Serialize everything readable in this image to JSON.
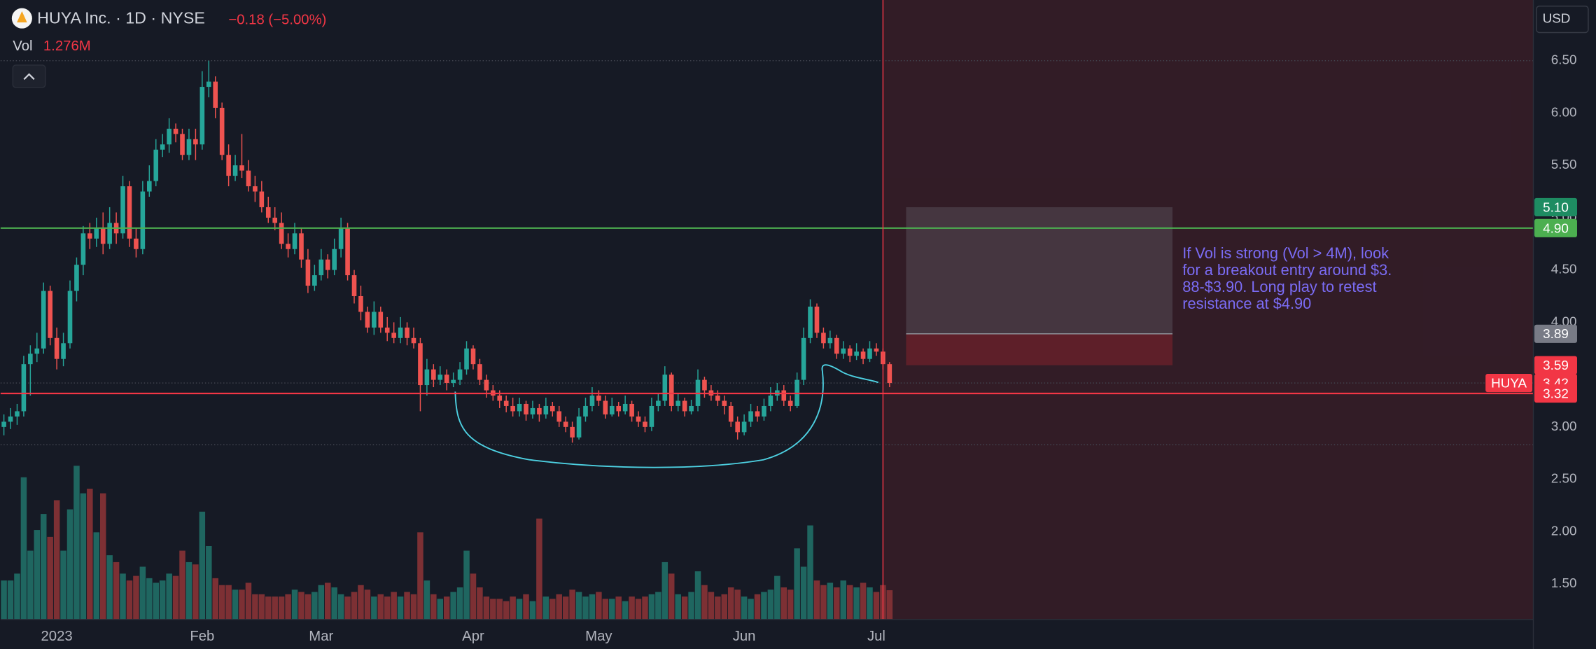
{
  "chart_data": {
    "type": "candlestick",
    "title": "HUYA Inc. · 1D · NYSE",
    "change": "−0.18 (−5.00%)",
    "volume_name": "Vol",
    "volume_label": "1.276M",
    "currency": "USD",
    "open": [
      3.0,
      3.05,
      3.1,
      3.15,
      3.6,
      3.7,
      3.75,
      4.3,
      3.85,
      3.65,
      3.8,
      4.3,
      4.55,
      4.85,
      4.8,
      4.9,
      4.75,
      4.95,
      4.85,
      5.3,
      4.8,
      4.7,
      5.25,
      5.35,
      5.65,
      5.7,
      5.85,
      5.8,
      5.6,
      5.75,
      5.7,
      6.25,
      6.3,
      6.05,
      5.6,
      5.4,
      5.5,
      5.45,
      5.3,
      5.25,
      5.1,
      5.0,
      4.95,
      4.75,
      4.7,
      4.85,
      4.6,
      4.35,
      4.45,
      4.6,
      4.5,
      4.7,
      4.9,
      4.45,
      4.25,
      4.1,
      3.95,
      4.1,
      3.95,
      3.9,
      3.85,
      3.95,
      3.85,
      3.8,
      3.4,
      3.55,
      3.45,
      3.5,
      3.42,
      3.45,
      3.55,
      3.75,
      3.6,
      3.45,
      3.35,
      3.3,
      3.25,
      3.2,
      3.15,
      3.22,
      3.12,
      3.18,
      3.12,
      3.2,
      3.15,
      3.05,
      3.0,
      2.9,
      3.1,
      3.2,
      3.3,
      3.25,
      3.12,
      3.2,
      3.15,
      3.22,
      3.1,
      3.05,
      3.0,
      3.2,
      3.25,
      3.5,
      3.2,
      3.25,
      3.15,
      3.2,
      3.45,
      3.35,
      3.3,
      3.25,
      3.2,
      3.05,
      2.95,
      3.05,
      3.15,
      3.1,
      3.2,
      3.3,
      3.35,
      3.25,
      3.2,
      3.45,
      3.85,
      4.15,
      3.9,
      3.8,
      3.85,
      3.7,
      3.75,
      3.68,
      3.72,
      3.65,
      3.75,
      3.72,
      3.6
    ],
    "high": [
      3.12,
      3.18,
      3.22,
      3.68,
      3.78,
      3.9,
      4.38,
      4.35,
      3.95,
      3.9,
      4.4,
      4.62,
      4.92,
      4.95,
      5.0,
      5.05,
      5.1,
      5.05,
      5.4,
      5.35,
      4.9,
      5.35,
      5.5,
      5.75,
      5.8,
      5.95,
      5.9,
      5.85,
      5.85,
      5.85,
      6.4,
      6.5,
      6.35,
      6.1,
      5.7,
      5.6,
      5.8,
      5.55,
      5.4,
      5.35,
      5.2,
      5.1,
      5.05,
      4.85,
      4.95,
      4.9,
      4.7,
      4.55,
      4.7,
      4.65,
      4.8,
      5.0,
      4.95,
      4.5,
      4.35,
      4.15,
      4.2,
      4.15,
      4.05,
      4.0,
      4.05,
      4.0,
      3.95,
      3.85,
      3.65,
      3.6,
      3.58,
      3.55,
      3.52,
      3.62,
      3.82,
      3.78,
      3.65,
      3.5,
      3.4,
      3.35,
      3.3,
      3.28,
      3.28,
      3.25,
      3.25,
      3.22,
      3.28,
      3.24,
      3.2,
      3.1,
      3.05,
      3.18,
      3.28,
      3.38,
      3.35,
      3.3,
      3.28,
      3.24,
      3.3,
      3.25,
      3.15,
      3.1,
      3.28,
      3.32,
      3.58,
      3.52,
      3.32,
      3.28,
      3.26,
      3.55,
      3.48,
      3.4,
      3.35,
      3.3,
      3.24,
      3.1,
      3.12,
      3.22,
      3.2,
      3.27,
      3.38,
      3.42,
      3.4,
      3.3,
      3.52,
      3.95,
      4.22,
      4.18,
      3.95,
      3.92,
      3.88,
      3.82,
      3.78,
      3.8,
      3.75,
      3.82,
      3.8,
      3.75,
      3.62
    ],
    "low": [
      2.92,
      2.98,
      3.02,
      3.1,
      3.3,
      3.62,
      3.7,
      3.78,
      3.55,
      3.58,
      3.75,
      4.2,
      4.45,
      4.7,
      4.72,
      4.65,
      4.7,
      4.75,
      4.8,
      4.72,
      4.62,
      4.65,
      5.2,
      5.3,
      5.58,
      5.62,
      5.72,
      5.55,
      5.55,
      5.55,
      5.65,
      6.15,
      5.95,
      5.55,
      5.3,
      5.35,
      5.38,
      5.25,
      5.15,
      5.05,
      4.95,
      4.88,
      4.7,
      4.62,
      4.65,
      4.52,
      4.28,
      4.3,
      4.4,
      4.42,
      4.45,
      4.62,
      4.4,
      4.18,
      4.02,
      3.9,
      3.88,
      3.9,
      3.82,
      3.8,
      3.8,
      3.78,
      3.75,
      3.15,
      3.3,
      3.38,
      3.4,
      3.35,
      3.38,
      3.4,
      3.5,
      3.55,
      3.4,
      3.28,
      3.25,
      3.18,
      3.14,
      3.1,
      3.1,
      3.06,
      3.08,
      3.05,
      3.08,
      3.1,
      3.0,
      2.95,
      2.85,
      2.88,
      3.05,
      3.15,
      3.2,
      3.08,
      3.1,
      3.1,
      3.12,
      3.05,
      3.0,
      2.95,
      2.96,
      3.15,
      3.2,
      3.15,
      3.15,
      3.1,
      3.12,
      3.15,
      3.28,
      3.25,
      3.2,
      3.12,
      3.0,
      2.88,
      2.92,
      3.0,
      3.05,
      3.06,
      3.15,
      3.25,
      3.2,
      3.15,
      3.18,
      3.4,
      3.8,
      3.85,
      3.75,
      3.75,
      3.65,
      3.65,
      3.62,
      3.64,
      3.6,
      3.62,
      3.68,
      3.55,
      3.38
    ],
    "close": [
      3.05,
      3.1,
      3.15,
      3.6,
      3.7,
      3.75,
      4.3,
      3.85,
      3.65,
      3.8,
      4.3,
      4.55,
      4.85,
      4.8,
      4.9,
      4.75,
      4.95,
      4.85,
      5.3,
      4.8,
      4.7,
      5.25,
      5.35,
      5.65,
      5.7,
      5.85,
      5.8,
      5.6,
      5.75,
      5.7,
      6.25,
      6.3,
      6.05,
      5.6,
      5.4,
      5.5,
      5.45,
      5.3,
      5.25,
      5.1,
      5.0,
      4.95,
      4.75,
      4.7,
      4.85,
      4.6,
      4.35,
      4.45,
      4.6,
      4.5,
      4.7,
      4.9,
      4.45,
      4.25,
      4.1,
      3.95,
      4.1,
      3.95,
      3.9,
      3.85,
      3.95,
      3.85,
      3.8,
      3.4,
      3.55,
      3.45,
      3.5,
      3.42,
      3.45,
      3.55,
      3.75,
      3.6,
      3.45,
      3.35,
      3.3,
      3.25,
      3.2,
      3.15,
      3.22,
      3.12,
      3.18,
      3.12,
      3.2,
      3.15,
      3.05,
      3.0,
      2.9,
      3.1,
      3.2,
      3.3,
      3.25,
      3.12,
      3.2,
      3.15,
      3.22,
      3.1,
      3.05,
      3.0,
      3.2,
      3.25,
      3.5,
      3.2,
      3.25,
      3.15,
      3.2,
      3.45,
      3.35,
      3.3,
      3.25,
      3.2,
      3.05,
      2.95,
      3.05,
      3.15,
      3.1,
      3.2,
      3.3,
      3.35,
      3.25,
      3.2,
      3.45,
      3.85,
      4.15,
      3.9,
      3.8,
      3.85,
      3.7,
      3.75,
      3.68,
      3.72,
      3.65,
      3.75,
      3.72,
      3.6,
      3.42
    ],
    "volume": [
      1.7,
      1.7,
      2.0,
      6.2,
      3.0,
      3.9,
      4.6,
      3.6,
      5.2,
      3.0,
      4.8,
      6.7,
      5.5,
      5.7,
      3.8,
      5.5,
      2.8,
      2.5,
      2.0,
      1.7,
      1.9,
      2.3,
      1.8,
      1.6,
      1.7,
      2.0,
      1.9,
      3.0,
      2.5,
      2.4,
      4.7,
      3.2,
      1.8,
      1.5,
      1.5,
      1.3,
      1.3,
      1.6,
      1.1,
      1.1,
      1.0,
      1.0,
      1.0,
      1.1,
      1.3,
      1.2,
      1.1,
      1.2,
      1.5,
      1.6,
      1.4,
      1.1,
      1.0,
      1.2,
      1.5,
      1.3,
      1.0,
      1.1,
      1.0,
      1.2,
      1.0,
      1.2,
      1.1,
      3.8,
      1.7,
      1.1,
      0.9,
      1.0,
      1.2,
      1.4,
      3.0,
      2.0,
      1.4,
      1.0,
      0.9,
      0.9,
      0.8,
      1.0,
      0.9,
      1.1,
      0.8,
      4.4,
      1.0,
      0.9,
      1.1,
      1.0,
      1.3,
      1.2,
      1.0,
      1.1,
      1.2,
      0.9,
      0.9,
      1.0,
      0.8,
      1.0,
      0.9,
      1.0,
      1.1,
      1.2,
      2.5,
      2.0,
      1.1,
      1.0,
      1.2,
      2.1,
      1.5,
      1.2,
      1.0,
      1.1,
      1.4,
      1.3,
      1.0,
      0.9,
      1.1,
      1.2,
      1.3,
      1.9,
      1.4,
      1.3,
      3.1,
      2.3,
      4.1,
      1.7,
      1.5,
      1.6,
      1.4,
      1.7,
      1.5,
      1.4,
      1.6,
      1.4,
      1.2,
      1.5,
      1.276
    ],
    "colors": {
      "up": "#26a69a",
      "down": "#ef5350",
      "vol_up": "#1f6660",
      "vol_down": "#7d3034"
    },
    "xlim": [
      -0.5,
      231.4
    ],
    "ylim": [
      1.16,
      7.08
    ],
    "vlim": [
      0,
      27
    ],
    "xticks": [
      {
        "value": 8,
        "label": "2023"
      },
      {
        "value": 30,
        "label": "Feb"
      },
      {
        "value": 48,
        "label": "Mar"
      },
      {
        "value": 71,
        "label": "Apr"
      },
      {
        "value": 90,
        "label": "May"
      },
      {
        "value": 112,
        "label": "Jun"
      },
      {
        "value": 132,
        "label": "Jul"
      }
    ],
    "yticks": [
      {
        "value": 1.5,
        "label": "1.50"
      },
      {
        "value": 2,
        "label": "2.00"
      },
      {
        "value": 2.5,
        "label": "2.50"
      },
      {
        "value": 3,
        "label": "3.00"
      },
      {
        "value": 4,
        "label": "4.00"
      },
      {
        "value": 4.5,
        "label": "4.50"
      },
      {
        "value": 5,
        "label": "5.00"
      },
      {
        "value": 5.5,
        "label": "5.50"
      },
      {
        "value": 6,
        "label": "6.00"
      },
      {
        "value": 6.5,
        "label": "6.50"
      }
    ],
    "levels": [
      {
        "value": 4.9,
        "color": "#4caf50"
      },
      {
        "value": 3.32,
        "color": "#f23645"
      }
    ],
    "dotted_levels": [
      6.5,
      3.42,
      2.83
    ],
    "vertical_line": {
      "index": 133,
      "color": "#f23645"
    },
    "position": {
      "start": 136.5,
      "end": 176.8,
      "target": 5.1,
      "entry": 3.89,
      "stop": 3.59
    },
    "badges": [
      {
        "value": 5.1,
        "label": "5.10",
        "color": "#1e8c62"
      },
      {
        "value": 4.9,
        "label": "4.90",
        "color": "#4caf50"
      },
      {
        "value": 3.89,
        "label": "3.89",
        "color": "#787b86"
      },
      {
        "value": 3.59,
        "label": "3.59",
        "color": "#f23645"
      },
      {
        "value": 3.42,
        "label": "3.42",
        "color": "#f23645",
        "name": "HUYA"
      },
      {
        "value": 3.32,
        "label": "3.32",
        "color": "#f23645"
      }
    ],
    "annotation": [
      "If Vol is strong (Vol > 4M), look",
      "for a breakout entry around $3.",
      "88-$3.90. Long play to retest",
      "resistance at $4.90"
    ]
  }
}
